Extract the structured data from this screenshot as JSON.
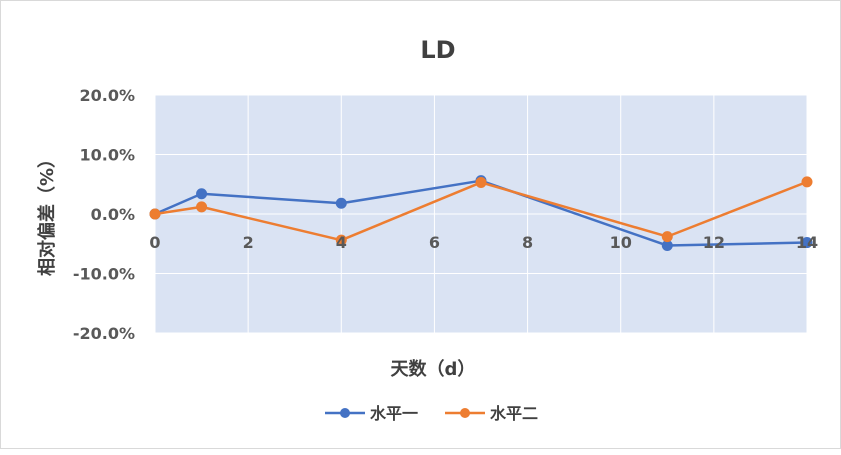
{
  "chart_data": {
    "type": "line",
    "title": "LD",
    "xlabel": "天数（d）",
    "ylabel": "相对偏差（%）",
    "xlim": [
      0,
      14
    ],
    "ylim": [
      -0.2,
      0.2
    ],
    "x_ticks": [
      0,
      2,
      4,
      6,
      8,
      10,
      12,
      14
    ],
    "y_ticks": [
      0.2,
      0.1,
      0.0,
      -0.1,
      -0.2
    ],
    "y_tick_labels": [
      "20.0%",
      "10.0%",
      "0.0%",
      "-10.0%",
      "-20.0%"
    ],
    "x_tick_labels": [
      "0",
      "2",
      "4",
      "6",
      "8",
      "10",
      "12",
      "14"
    ],
    "grid": true,
    "legend_position": "bottom",
    "plot_background": "#dae3f3",
    "series": [
      {
        "name": "水平一",
        "color": "#4472c4",
        "x": [
          0,
          1,
          4,
          7,
          11,
          14
        ],
        "y": [
          0.0,
          0.034,
          0.018,
          0.056,
          -0.053,
          -0.048
        ]
      },
      {
        "name": "水平二",
        "color": "#ed7d31",
        "x": [
          0,
          1,
          4,
          7,
          11,
          14
        ],
        "y": [
          0.0,
          0.012,
          -0.044,
          0.053,
          -0.038,
          0.054
        ]
      }
    ]
  }
}
